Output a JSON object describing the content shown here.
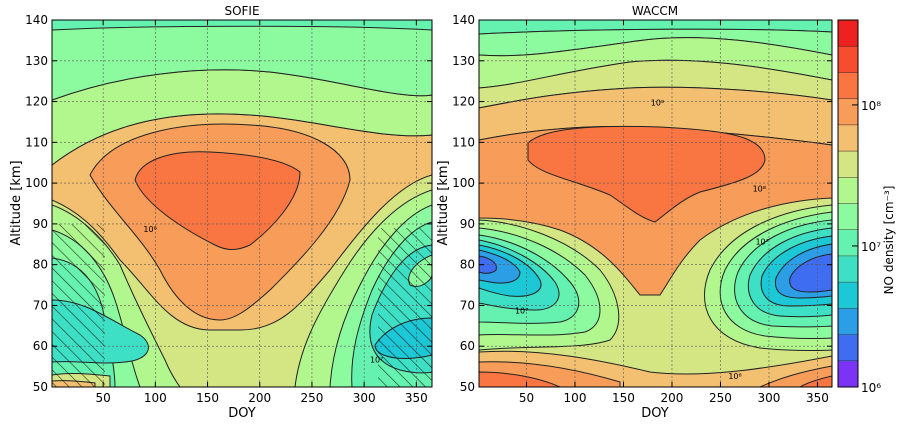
{
  "chart_data": [
    {
      "type": "contour",
      "title": "SOFIE",
      "xlabel": "DOY",
      "ylabel": "Altitude [km]",
      "xlim": [
        1,
        365
      ],
      "ylim": [
        50,
        140
      ],
      "xticks": [
        "50",
        "100",
        "150",
        "200",
        "250",
        "300",
        "350"
      ],
      "yticks": [
        "50",
        "60",
        "70",
        "80",
        "90",
        "100",
        "110",
        "120",
        "130",
        "140"
      ],
      "grid": true,
      "hatched_regions": [
        {
          "doy": [
            1,
            52
          ],
          "altitude": [
            50,
            90
          ]
        },
        {
          "doy": [
            315,
            365
          ],
          "altitude": [
            50,
            89
          ]
        }
      ],
      "contour_labels": [
        {
          "text": "10⁸",
          "doy": 95,
          "altitude": 88
        },
        {
          "text": "10⁷",
          "doy": 312,
          "altitude": 56
        }
      ]
    },
    {
      "type": "contour",
      "title": "WACCM",
      "xlabel": "DOY",
      "ylabel": "Altitude [km]",
      "xlim": [
        1,
        365
      ],
      "ylim": [
        50,
        140
      ],
      "xticks": [
        "50",
        "100",
        "150",
        "200",
        "250",
        "300",
        "350"
      ],
      "yticks": [
        "50",
        "60",
        "70",
        "80",
        "90",
        "100",
        "110",
        "120",
        "130",
        "140"
      ],
      "grid": true,
      "contour_labels": [
        {
          "text": "10⁸",
          "doy": 185,
          "altitude": 119
        },
        {
          "text": "10⁸",
          "doy": 290,
          "altitude": 98
        },
        {
          "text": "10⁷",
          "doy": 293,
          "altitude": 85
        },
        {
          "text": "10⁷",
          "doy": 45,
          "altitude": 68
        },
        {
          "text": "10⁶",
          "doy": 265,
          "altitude": 52
        }
      ]
    }
  ],
  "colorbar": {
    "label": "NO density [cm⁻³]",
    "scale": "log",
    "range": [
      1000000,
      400000000
    ],
    "ticks": [
      {
        "value": 1000000,
        "label": "10⁶"
      },
      {
        "value": 10000000,
        "label": "10⁷"
      },
      {
        "value": 100000000,
        "label": "10⁸"
      }
    ],
    "colors": [
      "#7b33f5",
      "#3f6df1",
      "#2c9ee6",
      "#1cc8d6",
      "#3de0c4",
      "#65f2b0",
      "#8cfa9e",
      "#b2f78e",
      "#d4e584",
      "#f2c070",
      "#f89c59",
      "#f97643",
      "#f64d2e",
      "#ee2020"
    ]
  }
}
